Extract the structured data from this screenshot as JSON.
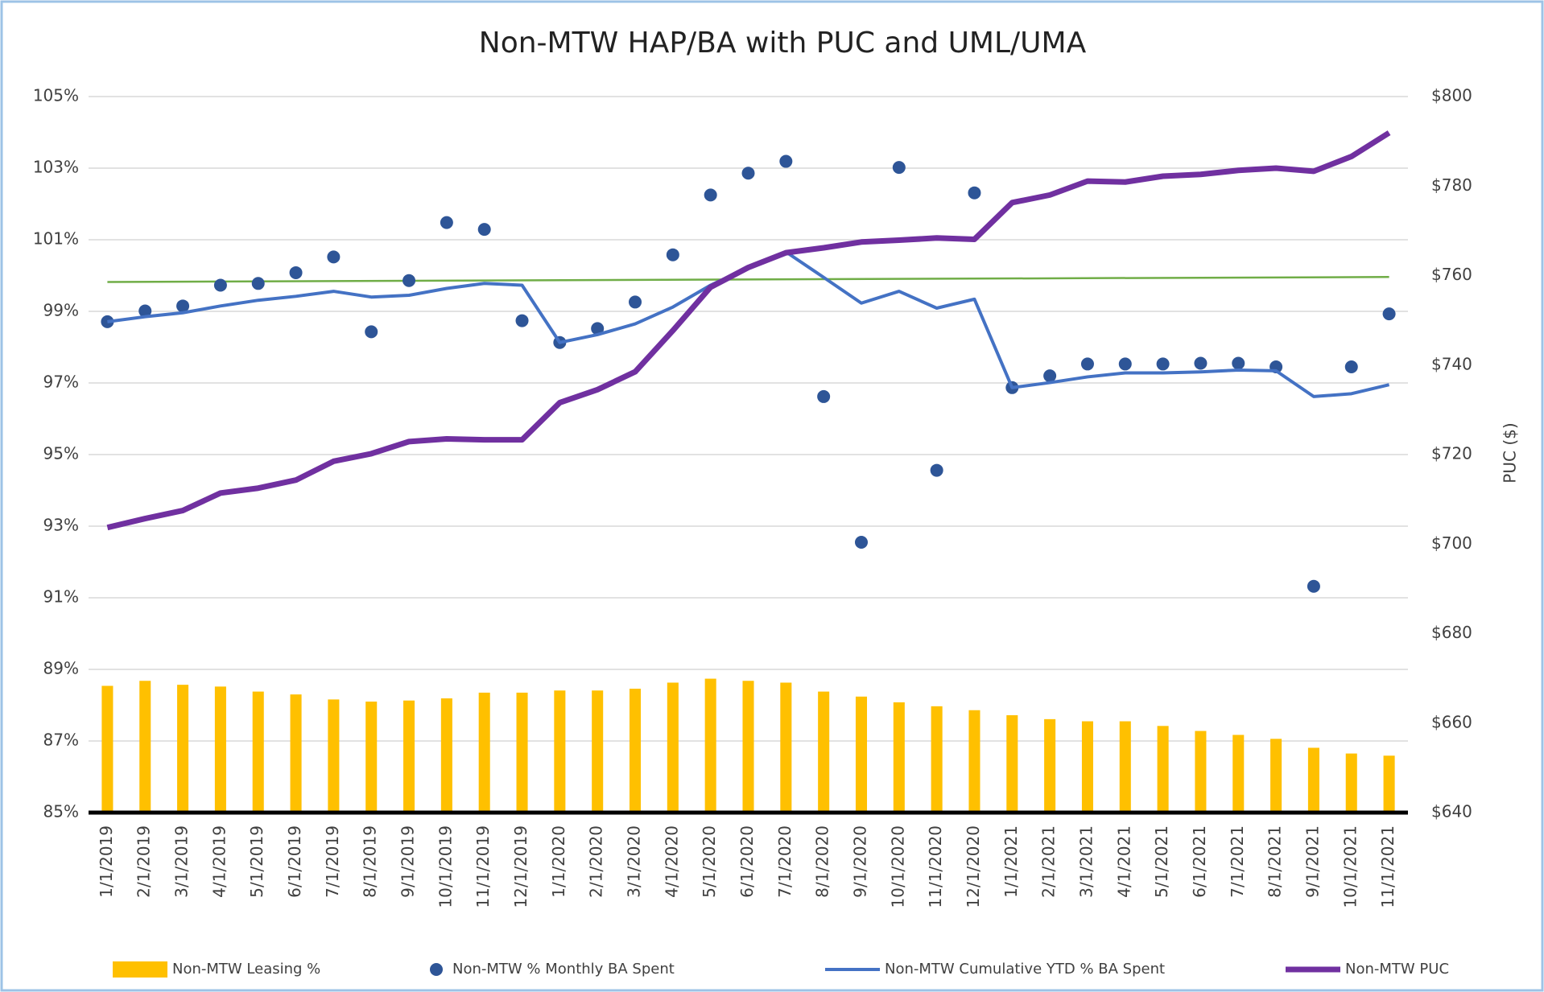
{
  "chart_data": {
    "type": "combo",
    "title": "Non-MTW HAP/BA with PUC and UML/UMA",
    "y2label": "PUC ($)",
    "categories": [
      "1/1/2019",
      "2/1/2019",
      "3/1/2019",
      "4/1/2019",
      "5/1/2019",
      "6/1/2019",
      "7/1/2019",
      "8/1/2019",
      "9/1/2019",
      "10/1/2019",
      "11/1/2019",
      "12/1/2019",
      "1/1/2020",
      "2/1/2020",
      "3/1/2020",
      "4/1/2020",
      "5/1/2020",
      "6/1/2020",
      "7/1/2020",
      "8/1/2020",
      "9/1/2020",
      "10/1/2020",
      "11/1/2020",
      "12/1/2020",
      "1/1/2021",
      "2/1/2021",
      "3/1/2021",
      "4/1/2021",
      "5/1/2021",
      "6/1/2021",
      "7/1/2021",
      "8/1/2021",
      "9/1/2021",
      "10/1/2021",
      "11/1/2021"
    ],
    "series": [
      {
        "name": "Non-MTW Leasing %",
        "type": "bar",
        "color": "#ffc000",
        "values": [
          88.54,
          88.68,
          88.57,
          88.52,
          88.38,
          88.3,
          88.16,
          88.1,
          88.13,
          88.19,
          88.35,
          88.35,
          88.41,
          88.41,
          88.46,
          88.63,
          88.74,
          88.68,
          88.63,
          88.38,
          88.24,
          88.08,
          87.97,
          87.86,
          87.72,
          87.61,
          87.55,
          87.55,
          87.42,
          87.28,
          87.17,
          87.06,
          86.81,
          86.65,
          86.59
        ]
      },
      {
        "name": "Non-MTW % Monthly BA Spent",
        "type": "scatter",
        "color": "#2e5597",
        "values": [
          98.71,
          99.01,
          99.15,
          99.73,
          99.78,
          100.08,
          100.52,
          98.43,
          99.86,
          101.48,
          101.29,
          98.74,
          98.13,
          98.52,
          99.26,
          100.58,
          102.25,
          102.86,
          103.19,
          96.62,
          92.55,
          103.02,
          94.56,
          102.31,
          96.87,
          97.2,
          97.53,
          97.53,
          97.53,
          97.55,
          97.55,
          97.45,
          91.32,
          97.45,
          98.93
        ]
      },
      {
        "name": "Non-MTW Cumulative YTD % BA Spent",
        "type": "line",
        "color": "#4472c4",
        "values": [
          98.71,
          98.85,
          98.96,
          99.15,
          99.31,
          99.42,
          99.56,
          99.4,
          99.45,
          99.64,
          99.78,
          99.73,
          98.13,
          98.35,
          98.65,
          99.12,
          99.73,
          100.22,
          100.66,
          99.95,
          99.23,
          99.56,
          99.09,
          99.34,
          96.87,
          97.01,
          97.17,
          97.28,
          97.28,
          97.31,
          97.36,
          97.34,
          96.62,
          96.7,
          96.95
        ]
      },
      {
        "name": "Non-MTW PUC",
        "type": "line",
        "axis": "y2",
        "color": "#7030a0",
        "values": [
          703.7,
          705.7,
          707.5,
          711.4,
          712.5,
          714.3,
          718.5,
          720.2,
          722.9,
          723.5,
          723.3,
          723.3,
          731.6,
          734.5,
          738.5,
          747.7,
          757.4,
          761.8,
          765.1,
          766.2,
          767.5,
          767.9,
          768.4,
          768.1,
          776.3,
          778.0,
          781.1,
          780.9,
          782.2,
          782.6,
          783.5,
          784.0,
          783.3,
          786.6,
          791.9
        ]
      }
    ],
    "reference_line": {
      "color": "#70ad47",
      "values": [
        99.82,
        99.96
      ]
    },
    "ylim": [
      85,
      105
    ],
    "yticks": [
      {
        "value": 85,
        "label": "85%"
      },
      {
        "value": 87,
        "label": "87%"
      },
      {
        "value": 89,
        "label": "89%"
      },
      {
        "value": 91,
        "label": "91%"
      },
      {
        "value": 93,
        "label": "93%"
      },
      {
        "value": 95,
        "label": "95%"
      },
      {
        "value": 97,
        "label": "97%"
      },
      {
        "value": 99,
        "label": "99%"
      },
      {
        "value": 101,
        "label": "101%"
      },
      {
        "value": 103,
        "label": "103%"
      },
      {
        "value": 105,
        "label": "105%"
      }
    ],
    "y2lim": [
      640,
      800
    ],
    "y2ticks": [
      {
        "value": 640,
        "label": "$640"
      },
      {
        "value": 660,
        "label": "$660"
      },
      {
        "value": 680,
        "label": "$680"
      },
      {
        "value": 700,
        "label": "$700"
      },
      {
        "value": 720,
        "label": "$720"
      },
      {
        "value": 740,
        "label": "$740"
      },
      {
        "value": 760,
        "label": "$760"
      },
      {
        "value": 780,
        "label": "$780"
      },
      {
        "value": 800,
        "label": "$800"
      }
    ],
    "grid": true
  }
}
